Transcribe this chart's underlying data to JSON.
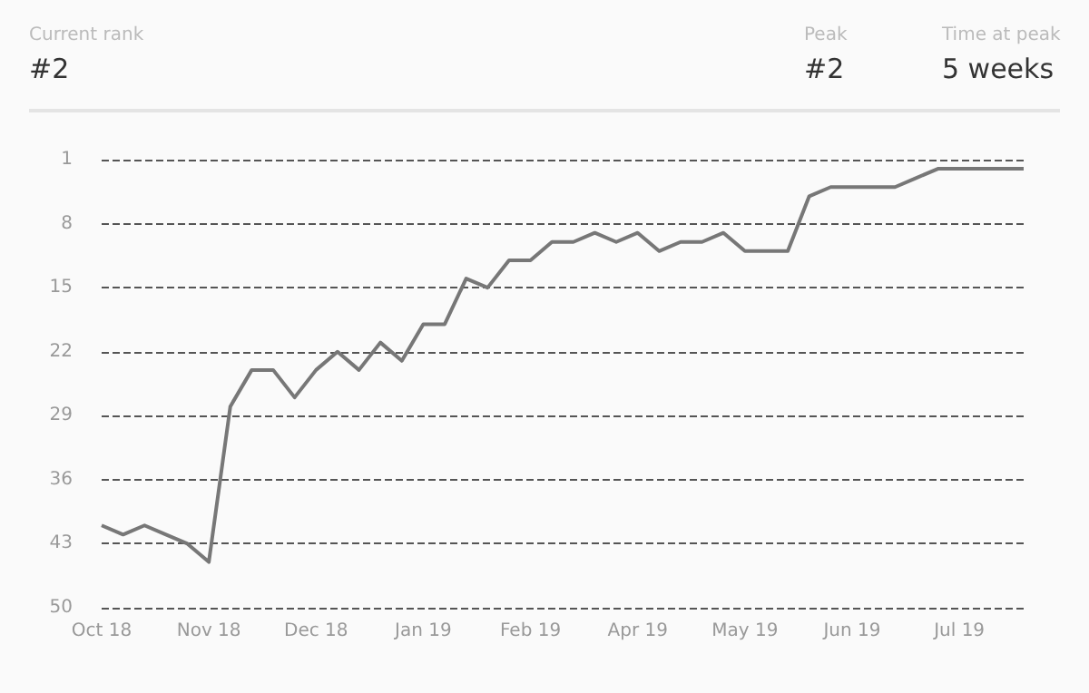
{
  "chart_data": {
    "type": "line",
    "annotations": [
      "Current rank",
      "#2",
      "Peak",
      "#2",
      "Time at peak",
      "5 weeks"
    ],
    "categories": [
      "Oct 18",
      null,
      null,
      null,
      null,
      "Nov 18",
      null,
      null,
      null,
      null,
      "Dec 18",
      null,
      null,
      null,
      null,
      "Jan 19",
      null,
      null,
      null,
      null,
      "Feb 19",
      null,
      null,
      null,
      null,
      "Apr 19",
      null,
      null,
      null,
      null,
      "May 19",
      null,
      null,
      null,
      null,
      "Jun 19",
      null,
      null,
      null,
      null,
      "Jul 19",
      null,
      null,
      null
    ],
    "series": [
      {
        "color": "#777777",
        "values": [
          41,
          42,
          41,
          42,
          43,
          45,
          28,
          24,
          24,
          27,
          24,
          22,
          24,
          21,
          23,
          19,
          19,
          14,
          15,
          12,
          12,
          10,
          10,
          9,
          10,
          9,
          11,
          10,
          10,
          9,
          11,
          11,
          11,
          5,
          4,
          4,
          4,
          4,
          3,
          2,
          2,
          2,
          2,
          2
        ]
      }
    ],
    "ylim": [
      50,
      1
    ],
    "yticks": [
      1,
      8,
      15,
      22,
      29,
      36,
      43,
      50
    ],
    "grid": "y",
    "marker": "none",
    "line_style": "solid"
  }
}
